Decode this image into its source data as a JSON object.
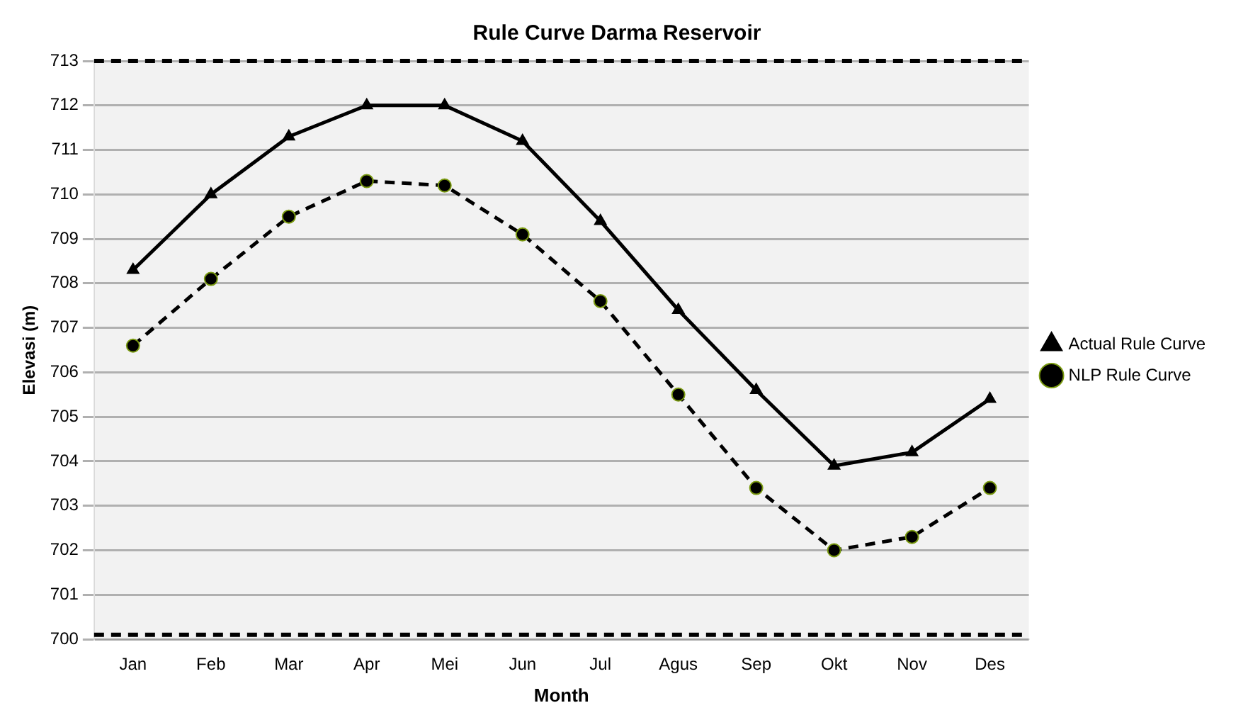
{
  "chart_data": {
    "type": "line",
    "title": "Rule Curve Darma Reservoir",
    "xlabel": "Month",
    "ylabel": "Elevasi (m)",
    "categories": [
      "Jan",
      "Feb",
      "Mar",
      "Apr",
      "Mei",
      "Jun",
      "Jul",
      "Agus",
      "Sep",
      "Okt",
      "Nov",
      "Des"
    ],
    "series": [
      {
        "name": "Actual Rule Curve",
        "color": "#000000",
        "marker": "triangle",
        "line_style": "solid",
        "values": [
          708.3,
          710.0,
          711.3,
          712.0,
          712.0,
          711.2,
          709.4,
          707.4,
          705.6,
          703.9,
          704.2,
          705.4
        ]
      },
      {
        "name": "NLP Rule Curve",
        "color": "#000000",
        "marker": "circle",
        "line_style": "dashed",
        "values": [
          706.6,
          708.1,
          709.5,
          710.3,
          710.2,
          709.1,
          707.6,
          705.5,
          703.4,
          702.0,
          702.3,
          703.4
        ]
      }
    ],
    "ylim": [
      700,
      713
    ],
    "yticks": [
      700,
      701,
      702,
      703,
      704,
      705,
      706,
      707,
      708,
      709,
      710,
      711,
      712,
      713
    ],
    "ref_lines": [
      {
        "axis": "y",
        "value": 713,
        "line_style": "dashed",
        "color": "#000000"
      },
      {
        "axis": "y",
        "value": 700.1,
        "line_style": "dashed",
        "color": "#000000"
      }
    ],
    "grid": "y",
    "legend": "right"
  }
}
